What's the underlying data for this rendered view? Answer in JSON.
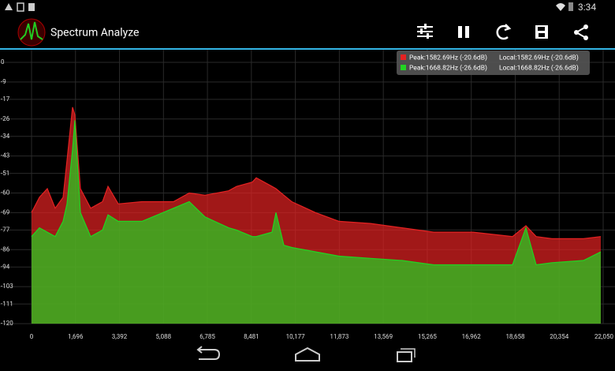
{
  "status_bar": {
    "time": "3:34"
  },
  "app_bar": {
    "title": "Spectrum Analyze"
  },
  "chart_data": {
    "type": "area",
    "x": [
      0,
      304,
      608,
      912,
      1217,
      1369,
      1583,
      1669,
      1886,
      2281,
      2737,
      2950,
      3346,
      4258,
      5475,
      6083,
      6691,
      7603,
      7907,
      8516,
      8668,
      9276,
      9428,
      9732,
      10036,
      10949,
      11861,
      13078,
      14294,
      15511,
      17032,
      18553,
      19069,
      19465,
      20073,
      21290,
      21959
    ],
    "series": [
      {
        "name": "Peak:1582.69Hz (-20.6dB)",
        "local": "Local:1582.69Hz (-20.6dB)",
        "color": "#e52222",
        "values": [
          -69,
          -62,
          -58,
          -67,
          -62,
          -45,
          -20.6,
          -24,
          -58,
          -67,
          -64,
          -57,
          -65,
          -64,
          -64,
          -60,
          -61,
          -59,
          -57,
          -55,
          -53,
          -57,
          -58,
          -61,
          -64,
          -69,
          -73,
          -74,
          -76,
          -78,
          -78,
          -80,
          -75,
          -80,
          -81,
          -81,
          -80
        ]
      },
      {
        "name": "Peak:1668.82Hz (-26.6dB)",
        "local": "Local:1668.82Hz (-26.6dB)",
        "color": "#22d422",
        "values": [
          -80,
          -76,
          -78,
          -80,
          -73,
          -65,
          -40,
          -26.6,
          -69,
          -80,
          -77,
          -70,
          -73,
          -73,
          -67,
          -64,
          -71,
          -76,
          -77,
          -80,
          -80,
          -78,
          -69,
          -84,
          -85,
          -87,
          -89,
          -90,
          -91,
          -93,
          -93,
          -93,
          -76,
          -93,
          -92,
          -91,
          -87
        ]
      }
    ],
    "xlim": [
      0,
      22050
    ],
    "xticks": [
      0,
      {
        "value": 1696,
        "label": "1,696"
      },
      {
        "value": 3392,
        "label": "3,392"
      },
      {
        "value": 5088,
        "label": "5,088"
      },
      {
        "value": 6785,
        "label": "6,785"
      },
      {
        "value": 8481,
        "label": "8,481"
      },
      {
        "value": 10177,
        "label": "10,177"
      },
      {
        "value": 11873,
        "label": "11,873"
      },
      {
        "value": 13569,
        "label": "13,569"
      },
      {
        "value": 15265,
        "label": "15,265"
      },
      {
        "value": 16962,
        "label": "16,962"
      },
      {
        "value": 18658,
        "label": "18,658"
      },
      {
        "value": 20354,
        "label": "20,354"
      },
      {
        "value": 22050,
        "label": "22,050"
      }
    ],
    "ylim": [
      -120,
      0
    ],
    "yticks": [
      0,
      -9,
      -17,
      -26,
      -34,
      -43,
      -51,
      -60,
      -69,
      -77,
      -86,
      -94,
      -103,
      -111,
      -120
    ],
    "grid": true
  }
}
